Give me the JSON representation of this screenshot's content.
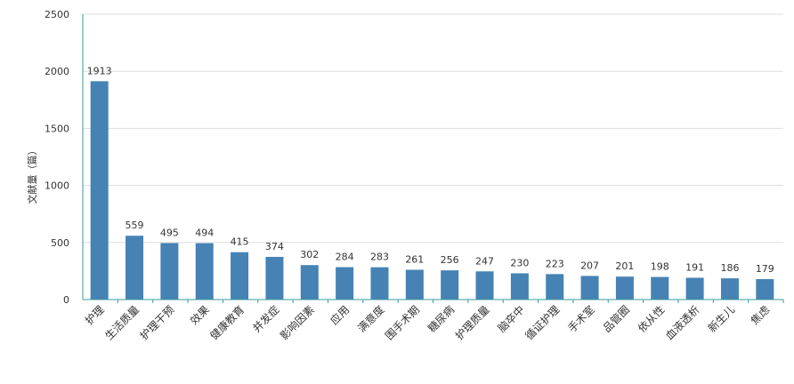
{
  "chart_data": {
    "type": "bar",
    "ylabel": "文献量（篇）",
    "ylim": [
      0,
      2500
    ],
    "yticks": [
      0,
      500,
      1000,
      1500,
      2000,
      2500
    ],
    "grid": true,
    "bar_color": "#4682b4",
    "axis_color": "#3a9b9b",
    "grid_color": "#dddddd",
    "categories": [
      "护理",
      "生活质量",
      "护理干预",
      "效果",
      "健康教育",
      "并发症",
      "影响因素",
      "应用",
      "满意度",
      "围手术期",
      "糖尿病",
      "护理质量",
      "脑卒中",
      "循证护理",
      "手术室",
      "品管圈",
      "依从性",
      "血液透析",
      "新生儿",
      "焦虑"
    ],
    "values": [
      1913,
      559,
      495,
      494,
      415,
      374,
      302,
      284,
      283,
      261,
      256,
      247,
      230,
      223,
      207,
      201,
      198,
      191,
      186,
      179
    ]
  }
}
